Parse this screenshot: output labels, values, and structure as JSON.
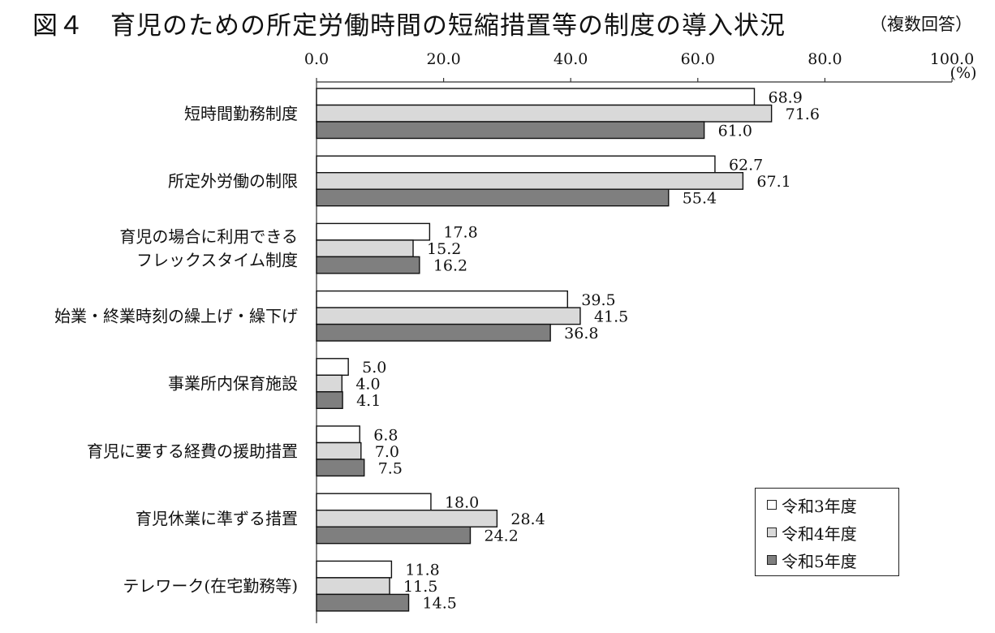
{
  "title": "図４　育児のための所定労働時間の短縮措置等の制度の導入状況",
  "note": "（複数回答）",
  "chart_data": {
    "type": "bar",
    "orientation": "horizontal",
    "unit_label": "(%)",
    "xlim": [
      0,
      100
    ],
    "tick_labels": [
      "0.0",
      "20.0",
      "40.0",
      "60.0",
      "80.0",
      "100.0"
    ],
    "categories": [
      [
        "短時間勤務制度"
      ],
      [
        "所定外労働の制限"
      ],
      [
        "育児の場合に利用できる",
        "フレックスタイム制度"
      ],
      [
        "始業・終業時刻の繰上げ・繰下げ"
      ],
      [
        "事業所内保育施設"
      ],
      [
        "育児に要する経費の援助措置"
      ],
      [
        "育児休業に準ずる措置"
      ],
      [
        "テレワーク(在宅勤務等)"
      ]
    ],
    "series": [
      {
        "name": "令和3年度",
        "color": "#ffffff",
        "values": [
          68.9,
          62.7,
          17.8,
          39.5,
          5.0,
          6.8,
          18.0,
          11.8
        ]
      },
      {
        "name": "令和4年度",
        "color": "#d9d9d9",
        "values": [
          71.6,
          67.1,
          15.2,
          41.5,
          4.0,
          7.0,
          28.4,
          11.5
        ]
      },
      {
        "name": "令和5年度",
        "color": "#7f7f7f",
        "values": [
          61.0,
          55.4,
          16.2,
          36.8,
          4.1,
          7.5,
          24.2,
          14.5
        ]
      }
    ],
    "legend_position": "bottom-right",
    "grid": false
  }
}
